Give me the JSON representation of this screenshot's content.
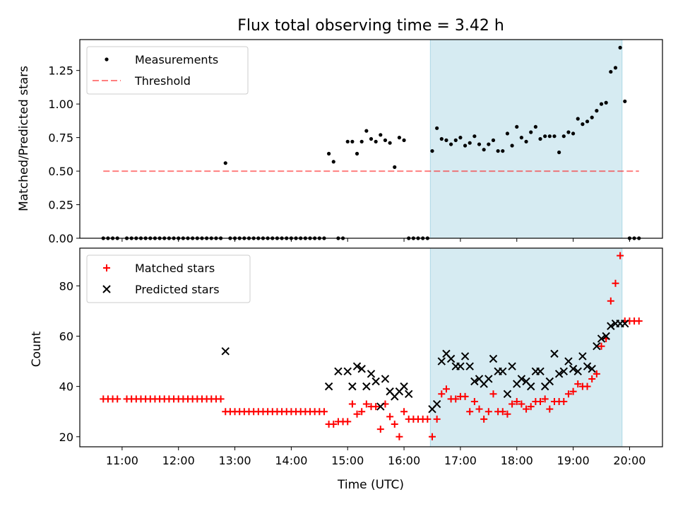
{
  "chart_data": [
    {
      "type": "scatter",
      "title": "Flux total observing time = 3.42 h",
      "xlabel": "",
      "ylabel": "Matched/Predicted stars",
      "xlim": [
        "10:15",
        "20:35"
      ],
      "ylim": [
        0,
        1.48
      ],
      "yticks": [
        "0.00",
        "0.25",
        "0.50",
        "0.75",
        "1.00",
        "1.25"
      ],
      "shaded_span": [
        "16:28",
        "19:52"
      ],
      "threshold": {
        "value": 0.5,
        "x_range": [
          "10:40",
          "20:10"
        ]
      },
      "legend": [
        "Measurements",
        "Threshold"
      ],
      "legend_position": "top-left",
      "series": [
        {
          "name": "Measurements",
          "marker": "dot",
          "color": "#000000",
          "x": [
            "10:40",
            "10:45",
            "10:50",
            "10:55",
            "11:05",
            "11:10",
            "11:15",
            "11:20",
            "11:25",
            "11:30",
            "11:35",
            "11:40",
            "11:45",
            "11:50",
            "11:55",
            "12:00",
            "12:05",
            "12:10",
            "12:15",
            "12:20",
            "12:25",
            "12:30",
            "12:35",
            "12:40",
            "12:45",
            "12:50",
            "12:55",
            "13:00",
            "13:05",
            "13:10",
            "13:15",
            "13:20",
            "13:25",
            "13:30",
            "13:35",
            "13:40",
            "13:45",
            "13:50",
            "13:55",
            "14:00",
            "14:05",
            "14:10",
            "14:15",
            "14:20",
            "14:25",
            "14:30",
            "14:35",
            "14:40",
            "14:45",
            "14:50",
            "14:55",
            "15:00",
            "15:05",
            "15:10",
            "15:15",
            "15:20",
            "15:25",
            "15:30",
            "15:35",
            "15:40",
            "15:45",
            "15:50",
            "15:55",
            "16:00",
            "16:05",
            "16:10",
            "16:15",
            "16:20",
            "16:25",
            "16:30",
            "16:35",
            "16:40",
            "16:45",
            "16:50",
            "16:55",
            "17:00",
            "17:05",
            "17:10",
            "17:15",
            "17:20",
            "17:25",
            "17:30",
            "17:35",
            "17:40",
            "17:45",
            "17:50",
            "17:55",
            "18:00",
            "18:05",
            "18:10",
            "18:15",
            "18:20",
            "18:25",
            "18:30",
            "18:35",
            "18:40",
            "18:45",
            "18:50",
            "18:55",
            "19:00",
            "19:05",
            "19:10",
            "19:15",
            "19:20",
            "19:25",
            "19:30",
            "19:35",
            "19:40",
            "19:45",
            "19:50",
            "19:55",
            "20:00",
            "20:05",
            "20:10"
          ],
          "y": [
            0,
            0,
            0,
            0,
            0,
            0,
            0,
            0,
            0,
            0,
            0,
            0,
            0,
            0,
            0,
            0,
            0,
            0,
            0,
            0,
            0,
            0,
            0,
            0,
            0,
            0.56,
            0,
            0,
            0,
            0,
            0,
            0,
            0,
            0,
            0,
            0,
            0,
            0,
            0,
            0,
            0,
            0,
            0,
            0,
            0,
            0,
            0,
            0.63,
            0.57,
            0,
            0,
            0.72,
            0.72,
            0.63,
            0.72,
            0.8,
            0.74,
            0.72,
            0.77,
            0.73,
            0.71,
            0.53,
            0.75,
            0.73,
            0,
            0,
            0,
            0,
            0,
            0.65,
            0.82,
            0.74,
            0.73,
            0.7,
            0.73,
            0.75,
            0.69,
            0.71,
            0.76,
            0.7,
            0.66,
            0.7,
            0.73,
            0.65,
            0.65,
            0.78,
            0.69,
            0.83,
            0.75,
            0.72,
            0.79,
            0.83,
            0.74,
            0.76,
            0.76,
            0.76,
            0.64,
            0.76,
            0.79,
            0.78,
            0.89,
            0.85,
            0.87,
            0.9,
            0.95,
            1.0,
            1.01,
            1.24,
            1.27,
            1.42,
            1.02,
            0,
            0,
            0
          ]
        }
      ]
    },
    {
      "type": "scatter",
      "title": "",
      "xlabel": "Time (UTC)",
      "ylabel": "Count",
      "xlim": [
        "10:15",
        "20:35"
      ],
      "ylim": [
        16,
        95
      ],
      "yticks": [
        "20",
        "40",
        "60",
        "80"
      ],
      "xticks": [
        "11:00",
        "12:00",
        "13:00",
        "14:00",
        "15:00",
        "16:00",
        "17:00",
        "18:00",
        "19:00",
        "20:00"
      ],
      "shaded_span": [
        "16:28",
        "19:52"
      ],
      "legend": [
        "Matched stars",
        "Predicted stars"
      ],
      "legend_position": "top-left",
      "series": [
        {
          "name": "Matched stars",
          "marker": "plus",
          "color": "#ff0000",
          "x": [
            "10:40",
            "10:45",
            "10:50",
            "10:55",
            "11:05",
            "11:10",
            "11:15",
            "11:20",
            "11:25",
            "11:30",
            "11:35",
            "11:40",
            "11:45",
            "11:50",
            "11:55",
            "12:00",
            "12:05",
            "12:10",
            "12:15",
            "12:20",
            "12:25",
            "12:30",
            "12:35",
            "12:40",
            "12:45",
            "12:50",
            "12:55",
            "13:00",
            "13:05",
            "13:10",
            "13:15",
            "13:20",
            "13:25",
            "13:30",
            "13:35",
            "13:40",
            "13:45",
            "13:50",
            "13:55",
            "14:00",
            "14:05",
            "14:10",
            "14:15",
            "14:20",
            "14:25",
            "14:30",
            "14:35",
            "14:40",
            "14:45",
            "14:50",
            "14:55",
            "15:00",
            "15:05",
            "15:10",
            "15:15",
            "15:20",
            "15:25",
            "15:30",
            "15:35",
            "15:40",
            "15:45",
            "15:50",
            "15:55",
            "16:00",
            "16:05",
            "16:10",
            "16:15",
            "16:20",
            "16:25",
            "16:30",
            "16:35",
            "16:40",
            "16:45",
            "16:50",
            "16:55",
            "17:00",
            "17:05",
            "17:10",
            "17:15",
            "17:20",
            "17:25",
            "17:30",
            "17:35",
            "17:40",
            "17:45",
            "17:50",
            "17:55",
            "18:00",
            "18:05",
            "18:10",
            "18:15",
            "18:20",
            "18:25",
            "18:30",
            "18:35",
            "18:40",
            "18:45",
            "18:50",
            "18:55",
            "19:00",
            "19:05",
            "19:10",
            "19:15",
            "19:20",
            "19:25",
            "19:30",
            "19:35",
            "19:40",
            "19:45",
            "19:50",
            "19:55",
            "20:00",
            "20:05",
            "20:10"
          ],
          "y": [
            35,
            35,
            35,
            35,
            35,
            35,
            35,
            35,
            35,
            35,
            35,
            35,
            35,
            35,
            35,
            35,
            35,
            35,
            35,
            35,
            35,
            35,
            35,
            35,
            35,
            30,
            30,
            30,
            30,
            30,
            30,
            30,
            30,
            30,
            30,
            30,
            30,
            30,
            30,
            30,
            30,
            30,
            30,
            30,
            30,
            30,
            30,
            25,
            25,
            26,
            26,
            26,
            33,
            29,
            30,
            33,
            32,
            32,
            23,
            33,
            28,
            25,
            20,
            30,
            27,
            27,
            27,
            27,
            27,
            20,
            27,
            37,
            39,
            35,
            35,
            36,
            36,
            30,
            34,
            31,
            27,
            30,
            37,
            30,
            30,
            29,
            33,
            34,
            33,
            31,
            32,
            34,
            34,
            35,
            31,
            34,
            34,
            34,
            37,
            38,
            41,
            40,
            40,
            43,
            45,
            56,
            59,
            74,
            81,
            92,
            66,
            66,
            66,
            66
          ]
        },
        {
          "name": "Predicted stars",
          "marker": "x",
          "color": "#000000",
          "x": [
            "12:50",
            "14:40",
            "14:50",
            "15:00",
            "15:05",
            "15:10",
            "15:15",
            "15:20",
            "15:25",
            "15:30",
            "15:35",
            "15:40",
            "15:45",
            "15:50",
            "15:55",
            "16:00",
            "16:05",
            "16:30",
            "16:35",
            "16:40",
            "16:45",
            "16:50",
            "16:55",
            "17:00",
            "17:05",
            "17:10",
            "17:15",
            "17:20",
            "17:25",
            "17:30",
            "17:35",
            "17:40",
            "17:45",
            "17:50",
            "17:55",
            "18:00",
            "18:05",
            "18:10",
            "18:15",
            "18:20",
            "18:25",
            "18:30",
            "18:35",
            "18:40",
            "18:45",
            "18:50",
            "18:55",
            "19:00",
            "19:05",
            "19:10",
            "19:15",
            "19:20",
            "19:25",
            "19:30",
            "19:35",
            "19:40",
            "19:45",
            "19:50",
            "19:55"
          ],
          "y": [
            54,
            40,
            46,
            46,
            40,
            48,
            47,
            40,
            45,
            42,
            32,
            43,
            38,
            36,
            38,
            40,
            37,
            31,
            33,
            50,
            53,
            51,
            48,
            48,
            52,
            48,
            42,
            43,
            41,
            43,
            51,
            46,
            46,
            37,
            48,
            41,
            43,
            42,
            40,
            46,
            46,
            40,
            42,
            53,
            45,
            46,
            50,
            47,
            46,
            52,
            48,
            47,
            56,
            59,
            60,
            64,
            65,
            65,
            65
          ]
        }
      ]
    }
  ]
}
